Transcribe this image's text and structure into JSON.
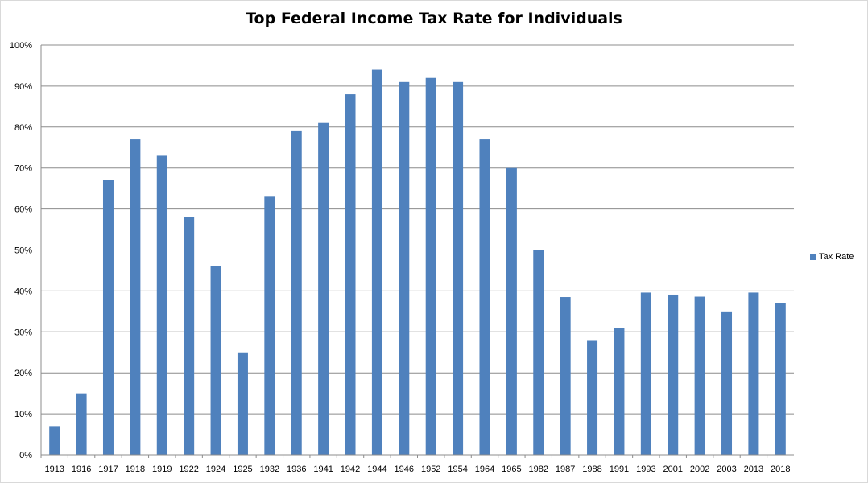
{
  "chart_data": {
    "type": "bar",
    "title": "Top Federal Income Tax Rate for Individuals",
    "categories": [
      "1913",
      "1916",
      "1917",
      "1918",
      "1919",
      "1922",
      "1924",
      "1925",
      "1932",
      "1936",
      "1941",
      "1942",
      "1944",
      "1946",
      "1952",
      "1954",
      "1964",
      "1965",
      "1982",
      "1987",
      "1988",
      "1991",
      "1993",
      "2001",
      "2002",
      "2003",
      "2013",
      "2018"
    ],
    "series": [
      {
        "name": "Tax Rate",
        "color": "#4F81BD",
        "values": [
          7,
          15,
          67,
          77,
          73,
          58,
          46,
          25,
          63,
          79,
          81,
          88,
          94,
          91,
          92,
          91,
          77,
          70,
          50,
          38.5,
          28,
          31,
          39.6,
          39.1,
          38.6,
          35,
          39.6,
          37
        ]
      }
    ],
    "ylim": [
      0,
      100
    ],
    "yticks": [
      "0%",
      "10%",
      "20%",
      "30%",
      "40%",
      "50%",
      "60%",
      "70%",
      "80%",
      "90%",
      "100%"
    ],
    "grid": "horizontal",
    "legend_position": "right"
  }
}
